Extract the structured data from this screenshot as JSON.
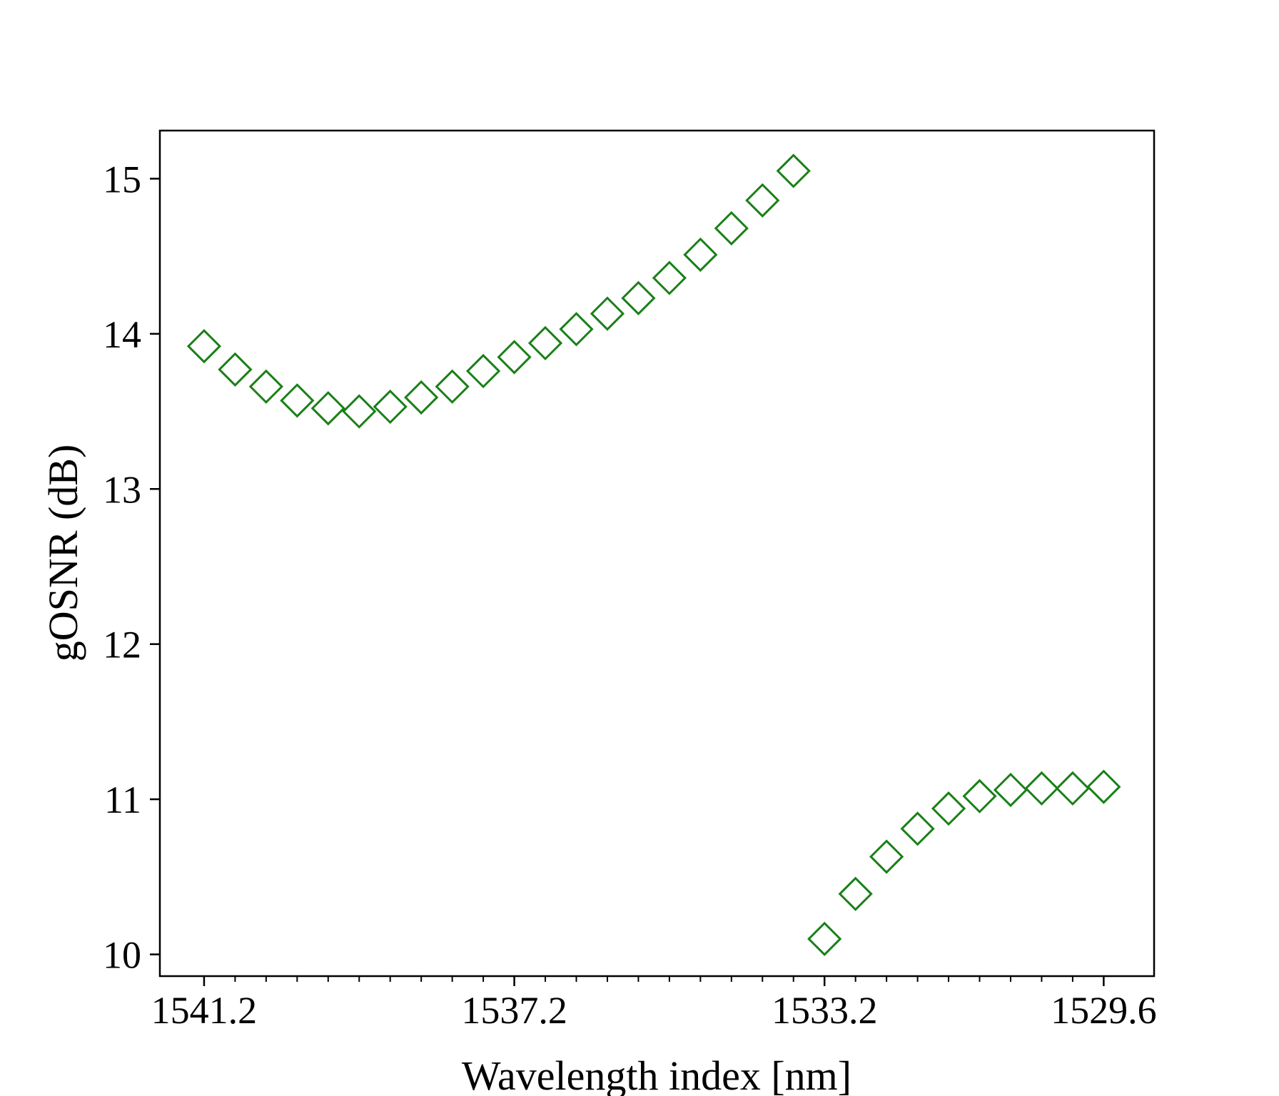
{
  "chart_data": {
    "type": "scatter",
    "title": "",
    "xlabel": "Wavelength index [nm]",
    "ylabel": "gOSNR (dB)",
    "x_ticks": [
      {
        "value": 1541.2,
        "label": "1541.2"
      },
      {
        "value": 1537.2,
        "label": "1537.2"
      },
      {
        "value": 1533.2,
        "label": "1533.2"
      },
      {
        "value": 1529.6,
        "label": "1529.6"
      }
    ],
    "x_minor_ticks": [
      1540.8,
      1540.4,
      1540.0,
      1539.6,
      1539.2,
      1538.8,
      1538.4,
      1538.0,
      1537.6,
      1536.8,
      1536.4,
      1536.0,
      1535.6,
      1535.2,
      1534.8,
      1534.4,
      1534.0,
      1533.6,
      1532.8,
      1532.4,
      1532.0,
      1531.6,
      1531.2,
      1530.8,
      1530.4,
      1530.0
    ],
    "y_ticks": [
      10,
      11,
      12,
      13,
      14,
      15
    ],
    "xlim": [
      1541.77,
      1528.95
    ],
    "ylim": [
      9.86,
      15.31
    ],
    "x_reversed": true,
    "marker": "diamond-open",
    "color": "#1a8018",
    "series": [
      {
        "x": [
          1541.2,
          1540.8,
          1540.4,
          1540.0,
          1539.6,
          1539.2,
          1538.8,
          1538.4,
          1538.0,
          1537.6,
          1537.2,
          1536.8,
          1536.4,
          1536.0,
          1535.6,
          1535.2,
          1534.8,
          1534.4,
          1534.0,
          1533.6
        ],
        "y": [
          13.92,
          13.77,
          13.66,
          13.57,
          13.52,
          13.5,
          13.53,
          13.59,
          13.66,
          13.76,
          13.85,
          13.94,
          14.03,
          14.13,
          14.23,
          14.36,
          14.51,
          14.68,
          14.86,
          15.05
        ]
      },
      {
        "x": [
          1533.2,
          1532.8,
          1532.4,
          1532.0,
          1531.6,
          1531.2,
          1530.8,
          1530.4,
          1530.0,
          1529.6
        ],
        "y": [
          10.1,
          10.39,
          10.63,
          10.81,
          10.94,
          11.02,
          11.06,
          11.07,
          11.07,
          11.08
        ]
      }
    ]
  }
}
